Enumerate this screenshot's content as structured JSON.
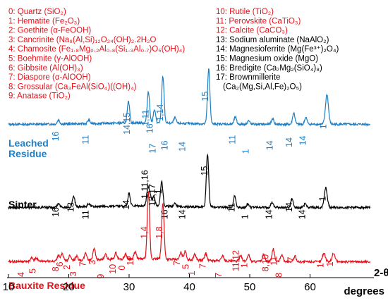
{
  "chart_data": {
    "type": "line",
    "xlabel_line1": "2-θ",
    "xlabel_line2": "degrees",
    "xlim": [
      10,
      70
    ],
    "xticks": [
      10,
      20,
      30,
      40,
      50,
      60
    ],
    "grid": false,
    "legend_left": [
      "0: Quartz (SiO₂)",
      "1: Hematite (Fe₂O₃)",
      "2: Goethite (α-FeOOH)",
      "3: Cancrinite (Na₈(Al,Si)₁₂O₂₄(OH)₂.2H₂O",
      "4: Chamosite (Fe₁.₈Mg₀.₂Al₀.₈(Si₁.₃Al₀.₇)O₅(OH)₄)",
      "5: Boehmite (γ-AlOOH)",
      "6: Gibbsite (Al(OH)₃)",
      "7: Diaspore (α-AlOOH)",
      "8: Grossular (Ca₃FeAl(SiO₄)((OH)₄)",
      "9: Anatase (TiO₂)"
    ],
    "legend_right": [
      "10: Rutile (TiO₂)",
      "11: Perovskite (CaTiO₃)",
      "12: Calcite (CaCO₃)",
      "13: Sodium aluminate (NaAlO₂)",
      "14: Magnesioferrite (Mg(Fe³⁺)₂O₄)",
      "15: Magnesium oxide (MgO)",
      "16: Bredigite (Ca₇Mg₂(SiO₄)₈)",
      "17: Brownmillerite",
      "(Ca₂(Mg,Si,Al,Fe)₂O₅)"
    ],
    "legend_right_colors": [
      "#e4121b",
      "#e4121b",
      "#e4121b",
      "#000000",
      "#000000",
      "#000000",
      "#000000",
      "#000000",
      "#000000"
    ],
    "series": [
      {
        "name": "Leached Residue",
        "name_lines": [
          "Leached",
          "Residue"
        ],
        "color": "#1f7fc4",
        "baseline": 0,
        "peaks": [
          [
            18.3,
            6
          ],
          [
            23.3,
            5
          ],
          [
            29.9,
            30
          ],
          [
            33.2,
            45
          ],
          [
            34.2,
            18
          ],
          [
            35.6,
            66
          ],
          [
            37.6,
            8
          ],
          [
            43.2,
            78
          ],
          [
            47.6,
            10
          ],
          [
            49.8,
            5
          ],
          [
            53.8,
            8
          ],
          [
            57.3,
            16
          ],
          [
            59.3,
            10
          ],
          [
            62.8,
            42
          ]
        ],
        "peak_labels": [
          {
            "t": "16",
            "x": 18.3,
            "y": 233
          },
          {
            "t": "11",
            "x": 23.3,
            "y": 238
          },
          {
            "t": "14,15",
            "x": 30.1,
            "y": 222
          },
          {
            "t": "1,11",
            "x": 33.2,
            "y": 208
          },
          {
            "t": "16",
            "x": 33.9,
            "y": 220
          },
          {
            "t": "17",
            "x": 34.4,
            "y": 253
          },
          {
            "t": "1,14",
            "x": 35.6,
            "y": 200
          },
          {
            "t": "16",
            "x": 36.4,
            "y": 248
          },
          {
            "t": "14",
            "x": 39.3,
            "y": 250
          },
          {
            "t": "15",
            "x": 43.1,
            "y": 167
          },
          {
            "t": "11",
            "x": 47.6,
            "y": 238
          },
          {
            "t": "1",
            "x": 49.8,
            "y": 254
          },
          {
            "t": "14",
            "x": 53.8,
            "y": 248
          },
          {
            "t": "14",
            "x": 57.0,
            "y": 243
          },
          {
            "t": "14",
            "x": 59.3,
            "y": 240
          },
          {
            "t": "1",
            "x": 62.7,
            "y": 213
          }
        ]
      },
      {
        "name": "Sinter",
        "name_lines": [
          "Sinter"
        ],
        "color": "#000000",
        "baseline": 0,
        "peaks": [
          [
            18.3,
            5
          ],
          [
            20.8,
            16
          ],
          [
            23.3,
            5
          ],
          [
            30.0,
            18
          ],
          [
            33.1,
            25
          ],
          [
            33.5,
            16
          ],
          [
            34.1,
            14
          ],
          [
            35.4,
            36
          ],
          [
            37.6,
            5
          ],
          [
            43.0,
            75
          ],
          [
            47.5,
            16
          ],
          [
            49.7,
            5
          ],
          [
            53.7,
            7
          ],
          [
            57.0,
            12
          ],
          [
            59.2,
            5
          ],
          [
            62.6,
            28
          ]
        ],
        "peak_labels": [
          {
            "t": "16",
            "x": 18.3,
            "y": 358
          },
          {
            "t": "13",
            "x": 20.8,
            "y": 350
          },
          {
            "t": "11",
            "x": 23.3,
            "y": 362
          },
          {
            "t": "14",
            "x": 30.0,
            "y": 346
          },
          {
            "t": "1,11,16",
            "x": 33.1,
            "y": 328
          },
          {
            "t": "13,17",
            "x": 34.3,
            "y": 340
          },
          {
            "t": "1",
            "x": 35.4,
            "y": 320
          },
          {
            "t": "16",
            "x": 36.4,
            "y": 362
          },
          {
            "t": "14",
            "x": 39.3,
            "y": 362
          },
          {
            "t": "15",
            "x": 43.0,
            "y": 290
          },
          {
            "t": "11",
            "x": 47.5,
            "y": 350
          },
          {
            "t": "1",
            "x": 49.7,
            "y": 362
          },
          {
            "t": "14",
            "x": 53.7,
            "y": 362
          },
          {
            "t": "14",
            "x": 57.0,
            "y": 350
          },
          {
            "t": "14",
            "x": 59.2,
            "y": 362
          },
          {
            "t": "1",
            "x": 62.6,
            "y": 332
          }
        ]
      },
      {
        "name": "Bauxite Residue",
        "name_lines": [
          "Bauxite Residue"
        ],
        "color": "#e4121b",
        "baseline": 0,
        "peaks": [
          [
            13.9,
            5
          ],
          [
            14.6,
            5
          ],
          [
            18.3,
            8
          ],
          [
            18.9,
            10
          ],
          [
            20.2,
            8
          ],
          [
            21.3,
            6
          ],
          [
            22.8,
            10
          ],
          [
            24.2,
            17
          ],
          [
            26.1,
            7
          ],
          [
            27.8,
            9
          ],
          [
            29.4,
            7
          ],
          [
            31.0,
            10
          ],
          [
            33.2,
            95
          ],
          [
            35.6,
            80
          ],
          [
            38.6,
            10
          ],
          [
            39.3,
            12
          ],
          [
            40.9,
            8
          ],
          [
            42.7,
            10
          ],
          [
            45.5,
            8
          ],
          [
            48.5,
            9
          ],
          [
            49.8,
            10
          ],
          [
            52.3,
            10
          ],
          [
            53.9,
            18
          ],
          [
            55.3,
            10
          ],
          [
            57.5,
            8
          ],
          [
            62.3,
            12
          ],
          [
            63.9,
            12
          ]
        ],
        "peak_labels": [
          {
            "t": "4",
            "x": 12.6,
            "y": 457
          },
          {
            "t": "5",
            "x": 14.5,
            "y": 451
          },
          {
            "t": "8",
            "x": 18.3,
            "y": 448
          },
          {
            "t": "6",
            "x": 19.0,
            "y": 440
          },
          {
            "t": "2",
            "x": 20.2,
            "y": 445
          },
          {
            "t": "3",
            "x": 21.2,
            "y": 456
          },
          {
            "t": "7",
            "x": 22.8,
            "y": 440
          },
          {
            "t": "3",
            "x": 24.4,
            "y": 437
          },
          {
            "t": "9",
            "x": 25.8,
            "y": 460
          },
          {
            "t": "10",
            "x": 27.8,
            "y": 452
          },
          {
            "t": "0",
            "x": 29.3,
            "y": 446
          },
          {
            "t": "12",
            "x": 30.7,
            "y": 438
          },
          {
            "t": "1,4",
            "x": 33.0,
            "y": 394
          },
          {
            "t": "1,8",
            "x": 35.5,
            "y": 394
          },
          {
            "t": "7",
            "x": 38.4,
            "y": 438
          },
          {
            "t": "5",
            "x": 39.9,
            "y": 444
          },
          {
            "t": "1",
            "x": 40.9,
            "y": 455
          },
          {
            "t": "7",
            "x": 42.7,
            "y": 443
          },
          {
            "t": "7",
            "x": 45.3,
            "y": 458
          },
          {
            "t": "11,12",
            "x": 48.2,
            "y": 448
          },
          {
            "t": "1",
            "x": 49.6,
            "y": 442
          },
          {
            "t": "8,10",
            "x": 53.1,
            "y": 448
          },
          {
            "t": "11",
            "x": 54.5,
            "y": 438
          },
          {
            "t": "8",
            "x": 55.3,
            "y": 458
          },
          {
            "t": "7",
            "x": 57.3,
            "y": 432
          },
          {
            "t": "1",
            "x": 62.2,
            "y": 442
          },
          {
            "t": "1",
            "x": 63.8,
            "y": 440
          }
        ]
      }
    ]
  }
}
